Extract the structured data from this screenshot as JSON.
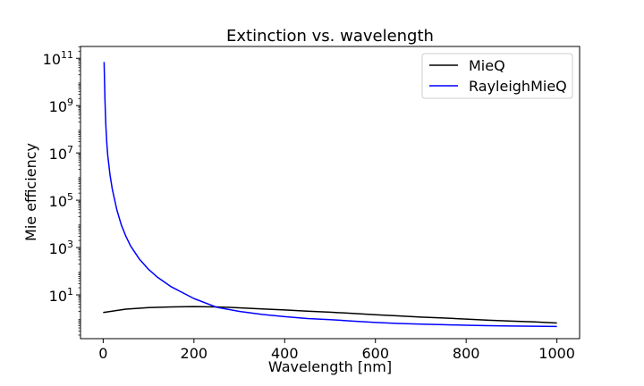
{
  "chart_data": {
    "type": "line",
    "title": "Extinction vs. wavelength",
    "xlabel": "Wavelength [nm]",
    "ylabel": "Mie efficiency",
    "xscale": "linear",
    "yscale": "log",
    "xlim": [
      -50,
      1050
    ],
    "ylim_log10": [
      -0.85,
      11.5
    ],
    "xticks": [
      {
        "value": 0,
        "label": "0"
      },
      {
        "value": 200,
        "label": "200"
      },
      {
        "value": 400,
        "label": "400"
      },
      {
        "value": 600,
        "label": "600"
      },
      {
        "value": 800,
        "label": "800"
      },
      {
        "value": 1000,
        "label": "1000"
      }
    ],
    "yticks": [
      {
        "value": 10,
        "base": "10",
        "exp": "1"
      },
      {
        "value": 1000,
        "base": "10",
        "exp": "3"
      },
      {
        "value": 100000,
        "base": "10",
        "exp": "5"
      },
      {
        "value": 10000000,
        "base": "10",
        "exp": "7"
      },
      {
        "value": 1000000000,
        "base": "10",
        "exp": "9"
      },
      {
        "value": 100000000000,
        "base": "10",
        "exp": "11"
      }
    ],
    "grid": false,
    "legend_position": "top-right",
    "series": [
      {
        "name": "MieQ",
        "color": "#000000",
        "x": [
          0,
          50,
          100,
          150,
          200,
          250,
          300,
          350,
          400,
          450,
          500,
          550,
          600,
          650,
          700,
          750,
          800,
          850,
          900,
          950,
          1000
        ],
        "y": [
          1.8,
          2.5,
          2.9,
          3.1,
          3.2,
          3.1,
          2.85,
          2.55,
          2.3,
          2.05,
          1.85,
          1.65,
          1.45,
          1.3,
          1.15,
          1.05,
          0.95,
          0.85,
          0.78,
          0.72,
          0.65
        ]
      },
      {
        "name": "RayleighMieQ",
        "color": "#0000ff",
        "x": [
          2,
          3,
          4,
          5,
          6,
          8,
          10,
          15,
          20,
          30,
          40,
          50,
          60,
          80,
          100,
          120,
          150,
          200,
          250,
          300,
          350,
          400,
          450,
          500,
          550,
          600,
          650,
          700,
          750,
          800,
          850,
          900,
          950,
          1000
        ],
        "y": [
          70000000000.0,
          10000000000.0,
          1600000000.0,
          400000000.0,
          130000000.0,
          25000000.0,
          8000000.0,
          1200000.0,
          300000.0,
          40000.0,
          9000,
          3000,
          1200,
          320,
          120,
          55,
          22,
          7,
          3,
          2,
          1.5,
          1.2,
          1.0,
          0.9,
          0.78,
          0.68,
          0.62,
          0.58,
          0.55,
          0.52,
          0.5,
          0.48,
          0.47,
          0.46
        ]
      }
    ]
  }
}
